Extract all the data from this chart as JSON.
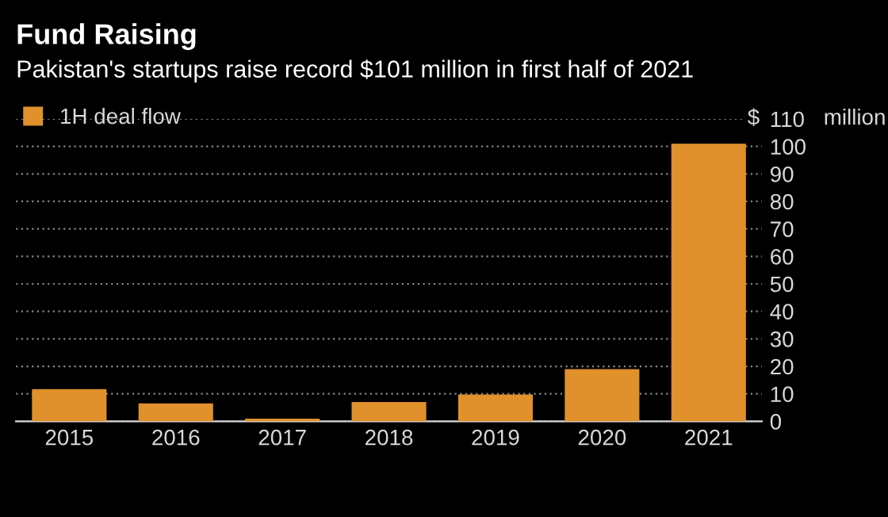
{
  "chart_data": {
    "type": "bar",
    "title": "Fund Raising",
    "subtitle": "Pakistan's startups raise record $101 million in first half of 2021",
    "categories": [
      "2015",
      "2016",
      "2017",
      "2018",
      "2019",
      "2020",
      "2021"
    ],
    "series": [
      {
        "name": "1H deal flow",
        "color": "#e0912b",
        "values": [
          11.7,
          6.5,
          1,
          7,
          9.8,
          19,
          101
        ]
      }
    ],
    "ylim": [
      0,
      110
    ],
    "yticks": [
      0,
      10,
      20,
      30,
      40,
      50,
      60,
      70,
      80,
      90,
      100,
      110
    ],
    "annotations": [
      "$",
      "million"
    ],
    "grid": "y",
    "legend": "top left"
  }
}
